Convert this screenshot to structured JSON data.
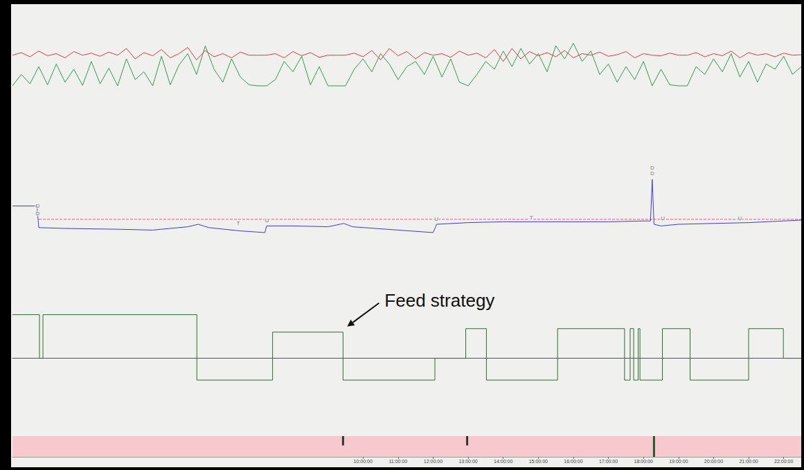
{
  "chart_data": [
    {
      "type": "line",
      "xlim": [
        0,
        22.5
      ],
      "ylim": [
        0,
        100
      ],
      "tick_labels": false,
      "x": [
        0,
        0.25,
        0.5,
        0.75,
        1,
        1.25,
        1.5,
        1.75,
        2,
        2.25,
        2.5,
        2.75,
        3,
        3.25,
        3.5,
        3.75,
        4,
        4.25,
        4.5,
        4.75,
        5,
        5.25,
        5.5,
        5.75,
        6,
        6.25,
        6.5,
        6.75,
        7,
        7.25,
        7.5,
        7.75,
        8,
        8.25,
        8.5,
        8.75,
        9,
        9.25,
        9.5,
        9.75,
        10,
        10.25,
        10.5,
        10.75,
        11,
        11.25,
        11.5,
        11.75,
        12,
        12.25,
        12.5,
        12.75,
        13,
        13.25,
        13.5,
        13.75,
        14,
        14.25,
        14.5,
        14.75,
        15,
        15.25,
        15.5,
        15.75,
        16,
        16.25,
        16.5,
        16.75,
        17,
        17.25,
        17.5,
        17.75,
        18,
        18.25,
        18.5,
        18.75,
        19,
        19.25,
        19.5,
        19.75,
        20,
        20.25,
        20.5,
        20.75,
        21,
        21.25,
        21.5,
        21.75,
        22,
        22.25,
        22.5
      ],
      "series": [
        {
          "color": "#2f9a4c",
          "values": [
            8,
            30,
            12,
            45,
            10,
            50,
            15,
            40,
            9,
            55,
            12,
            42,
            8,
            60,
            20,
            35,
            8,
            65,
            10,
            48,
            70,
            30,
            85,
            40,
            15,
            60,
            25,
            10,
            8,
            8,
            20,
            55,
            35,
            65,
            10,
            45,
            8,
            8,
            8,
            40,
            60,
            35,
            70,
            50,
            20,
            45,
            55,
            30,
            65,
            25,
            60,
            15,
            8,
            30,
            55,
            40,
            75,
            45,
            80,
            50,
            70,
            35,
            85,
            60,
            90,
            55,
            75,
            30,
            50,
            15,
            45,
            20,
            55,
            8,
            40,
            10,
            8,
            8,
            45,
            30,
            60,
            35,
            70,
            25,
            55,
            15,
            50,
            40,
            65,
            30,
            45
          ]
        },
        {
          "color": "#e03a3a",
          "values": [
            67,
            72,
            64,
            75,
            66,
            70,
            62,
            74,
            67,
            71,
            65,
            73,
            67,
            80,
            60,
            72,
            66,
            78,
            62,
            70,
            82,
            58,
            76,
            64,
            70,
            62,
            73,
            67,
            67,
            67,
            70,
            62,
            74,
            66,
            72,
            63,
            67,
            67,
            67,
            71,
            64,
            76,
            58,
            80,
            66,
            74,
            60,
            72,
            67,
            70,
            63,
            75,
            67,
            71,
            62,
            78,
            55,
            80,
            60,
            74,
            66,
            72,
            64,
            76,
            62,
            70,
            67,
            73,
            65,
            68,
            74,
            62,
            70,
            67,
            66,
            71,
            67,
            67,
            72,
            64,
            70,
            66,
            75,
            62,
            72,
            67,
            70,
            64,
            71,
            67,
            68
          ]
        }
      ]
    },
    {
      "type": "line",
      "xlim": [
        0,
        22.5
      ],
      "ylim": [
        0,
        100
      ],
      "tick_labels": false,
      "series": [
        {
          "color": "#e0607a",
          "line_style": "dashed",
          "x": [
            0.75,
            22.5
          ],
          "values": [
            36,
            36
          ]
        },
        {
          "color": "#3b3bd0",
          "x": [
            0,
            0.7,
            0.75,
            1.5,
            3,
            4,
            5,
            5.3,
            5.6,
            6.5,
            7.2,
            7.25,
            8,
            9,
            9.45,
            9.7,
            11,
            12,
            12.1,
            13,
            14,
            15,
            16,
            17,
            18,
            18.2,
            18.25,
            18.3,
            18.5,
            19,
            20,
            21,
            22.5
          ],
          "values": [
            52,
            52,
            26,
            25,
            24,
            23,
            27,
            30,
            26,
            22,
            20,
            28,
            28,
            27,
            31,
            27,
            23,
            20,
            30,
            32,
            33,
            33,
            33,
            33,
            34,
            34,
            84,
            30,
            28,
            30,
            31,
            32,
            35
          ]
        }
      ],
      "labels": [
        {
          "x": 0.72,
          "y": 52,
          "text": "D"
        },
        {
          "x": 0.72,
          "y": 43,
          "text": "D"
        },
        {
          "x": 6.44,
          "y": 31,
          "text": "T"
        },
        {
          "x": 7.26,
          "y": 35,
          "text": "U"
        },
        {
          "x": 12.09,
          "y": 36,
          "text": "U"
        },
        {
          "x": 14.8,
          "y": 38,
          "text": "T"
        },
        {
          "x": 18.25,
          "y": 98,
          "text": "D"
        },
        {
          "x": 18.25,
          "y": 91,
          "text": "D"
        },
        {
          "x": 18.55,
          "y": 37,
          "text": "U"
        },
        {
          "x": 20.75,
          "y": 37,
          "text": "U"
        }
      ]
    },
    {
      "type": "line",
      "xlim": [
        0,
        22.5
      ],
      "ylim": [
        -0.8,
        1.2
      ],
      "tick_labels": false,
      "series": [
        {
          "color": "#2e6b2e",
          "x": [
            0,
            0.77,
            0.77,
            0.87,
            0.87,
            5.26,
            5.26,
            7.42,
            7.42,
            9.43,
            9.43,
            12.05,
            12.05,
            12.93,
            12.93,
            13.52,
            13.52,
            15.55,
            15.55,
            17.46,
            17.46,
            17.62,
            17.62,
            17.72,
            17.72,
            17.85,
            17.85,
            17.9,
            17.9,
            18.54,
            18.54,
            19.33,
            19.33,
            21,
            21,
            21.99,
            21.99,
            22.5
          ],
          "values": [
            1,
            1,
            0,
            0,
            1,
            1,
            -0.5,
            -0.5,
            0.6,
            0.6,
            -0.5,
            -0.5,
            0,
            0,
            0.68,
            0.68,
            -0.5,
            -0.5,
            0.68,
            0.68,
            -0.5,
            -0.5,
            0.68,
            0.68,
            -0.5,
            -0.5,
            0.68,
            0.68,
            -0.5,
            -0.5,
            0.68,
            0.68,
            -0.5,
            -0.5,
            0.68,
            0.68,
            0,
            0
          ]
        }
      ],
      "annotations": [
        {
          "text": "Feed strategy",
          "x": 9.43,
          "y": 0.6
        }
      ]
    },
    {
      "type": "bar",
      "xlim": [
        0,
        22.5
      ],
      "ylim": [
        0,
        1
      ],
      "tick_labels": "x",
      "x": [
        9.43,
        12.97,
        18.3
      ],
      "values": [
        0.45,
        0.45,
        1
      ],
      "colors": [
        "#333333",
        "#333333",
        "#1f5a2c"
      ],
      "xticks": [
        {
          "value": 10,
          "label": "10:00:00"
        },
        {
          "value": 11,
          "label": "11:00:00"
        },
        {
          "value": 12,
          "label": "12:00:00"
        },
        {
          "value": 13,
          "label": "13:00:00"
        },
        {
          "value": 14,
          "label": "14:00:00"
        },
        {
          "value": 15,
          "label": "15:00:00"
        },
        {
          "value": 16,
          "label": "16:00:00"
        },
        {
          "value": 17,
          "label": "17:00:00"
        },
        {
          "value": 18,
          "label": "18:00:00"
        },
        {
          "value": 19,
          "label": "19:00:00"
        },
        {
          "value": 20,
          "label": "20:00:00"
        },
        {
          "value": 21,
          "label": "21:00:00"
        },
        {
          "value": 22,
          "label": "22:00:00"
        }
      ]
    }
  ]
}
